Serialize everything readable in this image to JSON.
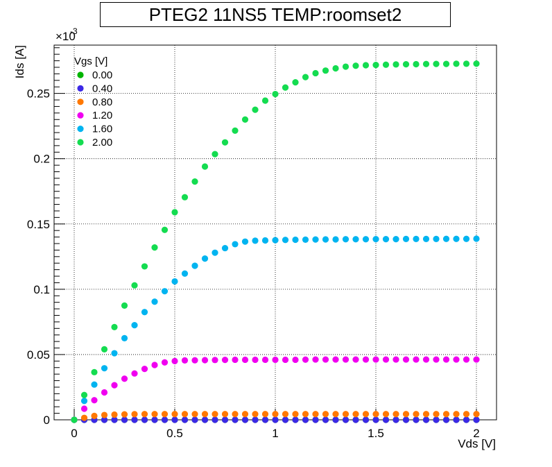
{
  "chart_data": {
    "type": "scatter",
    "title": "PTEG2 11NS5 TEMP:roomset2",
    "xlabel": "Vds [V]",
    "ylabel": "Ids [A]",
    "y_exponent_label": "×10",
    "y_exponent_power": "-3",
    "xlim": [
      -0.1,
      2.1
    ],
    "ylim": [
      0,
      0.287
    ],
    "x_ticks": [
      0,
      0.5,
      1,
      1.5,
      2
    ],
    "x_tick_labels": [
      "0",
      "0.5",
      "1",
      "1.5",
      "2"
    ],
    "y_ticks": [
      0,
      0.05,
      0.1,
      0.15,
      0.2,
      0.25
    ],
    "y_tick_labels": [
      "0",
      "0.05",
      "0.1",
      "0.15",
      "0.2",
      "0.25"
    ],
    "grid": true,
    "legend_title": "Vgs [V]",
    "legend_position": "top-left",
    "x": [
      0,
      0.05,
      0.1,
      0.15,
      0.2,
      0.25,
      0.3,
      0.35,
      0.4,
      0.45,
      0.5,
      0.55,
      0.6,
      0.65,
      0.7,
      0.75,
      0.8,
      0.85,
      0.9,
      0.95,
      1.0,
      1.05,
      1.1,
      1.15,
      1.2,
      1.25,
      1.3,
      1.35,
      1.4,
      1.45,
      1.5,
      1.55,
      1.6,
      1.65,
      1.7,
      1.75,
      1.8,
      1.85,
      1.9,
      1.95,
      2.0
    ],
    "series": [
      {
        "name": "0.00",
        "color": "#00b400",
        "values": [
          0,
          0,
          0,
          0,
          0,
          0,
          0,
          0,
          0,
          0,
          0,
          0,
          0,
          0,
          0,
          0,
          0,
          0,
          0,
          0,
          0,
          0,
          0,
          0,
          0,
          0,
          0,
          0,
          0,
          0,
          0,
          0,
          0,
          0,
          0,
          0,
          0,
          0,
          0,
          0,
          0
        ]
      },
      {
        "name": "0.40",
        "color": "#3c28e6",
        "values": [
          0,
          0,
          0,
          0,
          0,
          0,
          0,
          0,
          0,
          0,
          0,
          0,
          0,
          0,
          0,
          0,
          0,
          0,
          0,
          0,
          0,
          0,
          0,
          0,
          0,
          0,
          0,
          0,
          0,
          0,
          0,
          0,
          0,
          0,
          0,
          0,
          0,
          0,
          0,
          0,
          0
        ]
      },
      {
        "name": "0.80",
        "color": "#ff7800",
        "values": [
          0,
          0.0015,
          0.003,
          0.0037,
          0.004,
          0.0042,
          0.0043,
          0.0044,
          0.0044,
          0.0044,
          0.0044,
          0.0044,
          0.0044,
          0.0044,
          0.0044,
          0.0044,
          0.0044,
          0.0044,
          0.0044,
          0.0044,
          0.0044,
          0.0044,
          0.0044,
          0.0044,
          0.0044,
          0.0044,
          0.0044,
          0.0044,
          0.0044,
          0.0044,
          0.0044,
          0.0044,
          0.0044,
          0.0044,
          0.0044,
          0.0044,
          0.0044,
          0.0044,
          0.0044,
          0.0044,
          0.0044
        ]
      },
      {
        "name": "1.20",
        "color": "#f000f0",
        "values": [
          0,
          0.0085,
          0.015,
          0.021,
          0.0265,
          0.0315,
          0.0355,
          0.039,
          0.042,
          0.044,
          0.045,
          0.0455,
          0.0456,
          0.0457,
          0.0458,
          0.0459,
          0.046,
          0.046,
          0.046,
          0.046,
          0.046,
          0.046,
          0.046,
          0.0461,
          0.0462,
          0.0462,
          0.0462,
          0.0462,
          0.0462,
          0.0462,
          0.0462,
          0.0462,
          0.0462,
          0.0462,
          0.0462,
          0.0462,
          0.0462,
          0.0462,
          0.0462,
          0.0462,
          0.0462
        ]
      },
      {
        "name": "1.60",
        "color": "#00b4f0",
        "values": [
          0,
          0.0145,
          0.027,
          0.0395,
          0.051,
          0.0625,
          0.0725,
          0.0825,
          0.0905,
          0.0985,
          0.106,
          0.112,
          0.118,
          0.1235,
          0.128,
          0.1315,
          0.1345,
          0.1365,
          0.1372,
          0.1374,
          0.1376,
          0.1378,
          0.1379,
          0.138,
          0.1381,
          0.1382,
          0.1382,
          0.1383,
          0.1383,
          0.1383,
          0.1384,
          0.1384,
          0.1384,
          0.1385,
          0.1385,
          0.1385,
          0.1385,
          0.1386,
          0.1386,
          0.1386,
          0.1387
        ]
      },
      {
        "name": "2.00",
        "color": "#14dc50",
        "values": [
          0,
          0.019,
          0.0365,
          0.054,
          0.071,
          0.0875,
          0.103,
          0.1175,
          0.132,
          0.1455,
          0.159,
          0.1705,
          0.1825,
          0.194,
          0.2035,
          0.2125,
          0.2215,
          0.23,
          0.2375,
          0.2445,
          0.2495,
          0.2545,
          0.2585,
          0.2625,
          0.2655,
          0.2675,
          0.2692,
          0.2705,
          0.2712,
          0.2716,
          0.2718,
          0.272,
          0.2722,
          0.2723,
          0.2724,
          0.2725,
          0.2726,
          0.2726,
          0.2727,
          0.2727,
          0.2728
        ]
      }
    ]
  }
}
